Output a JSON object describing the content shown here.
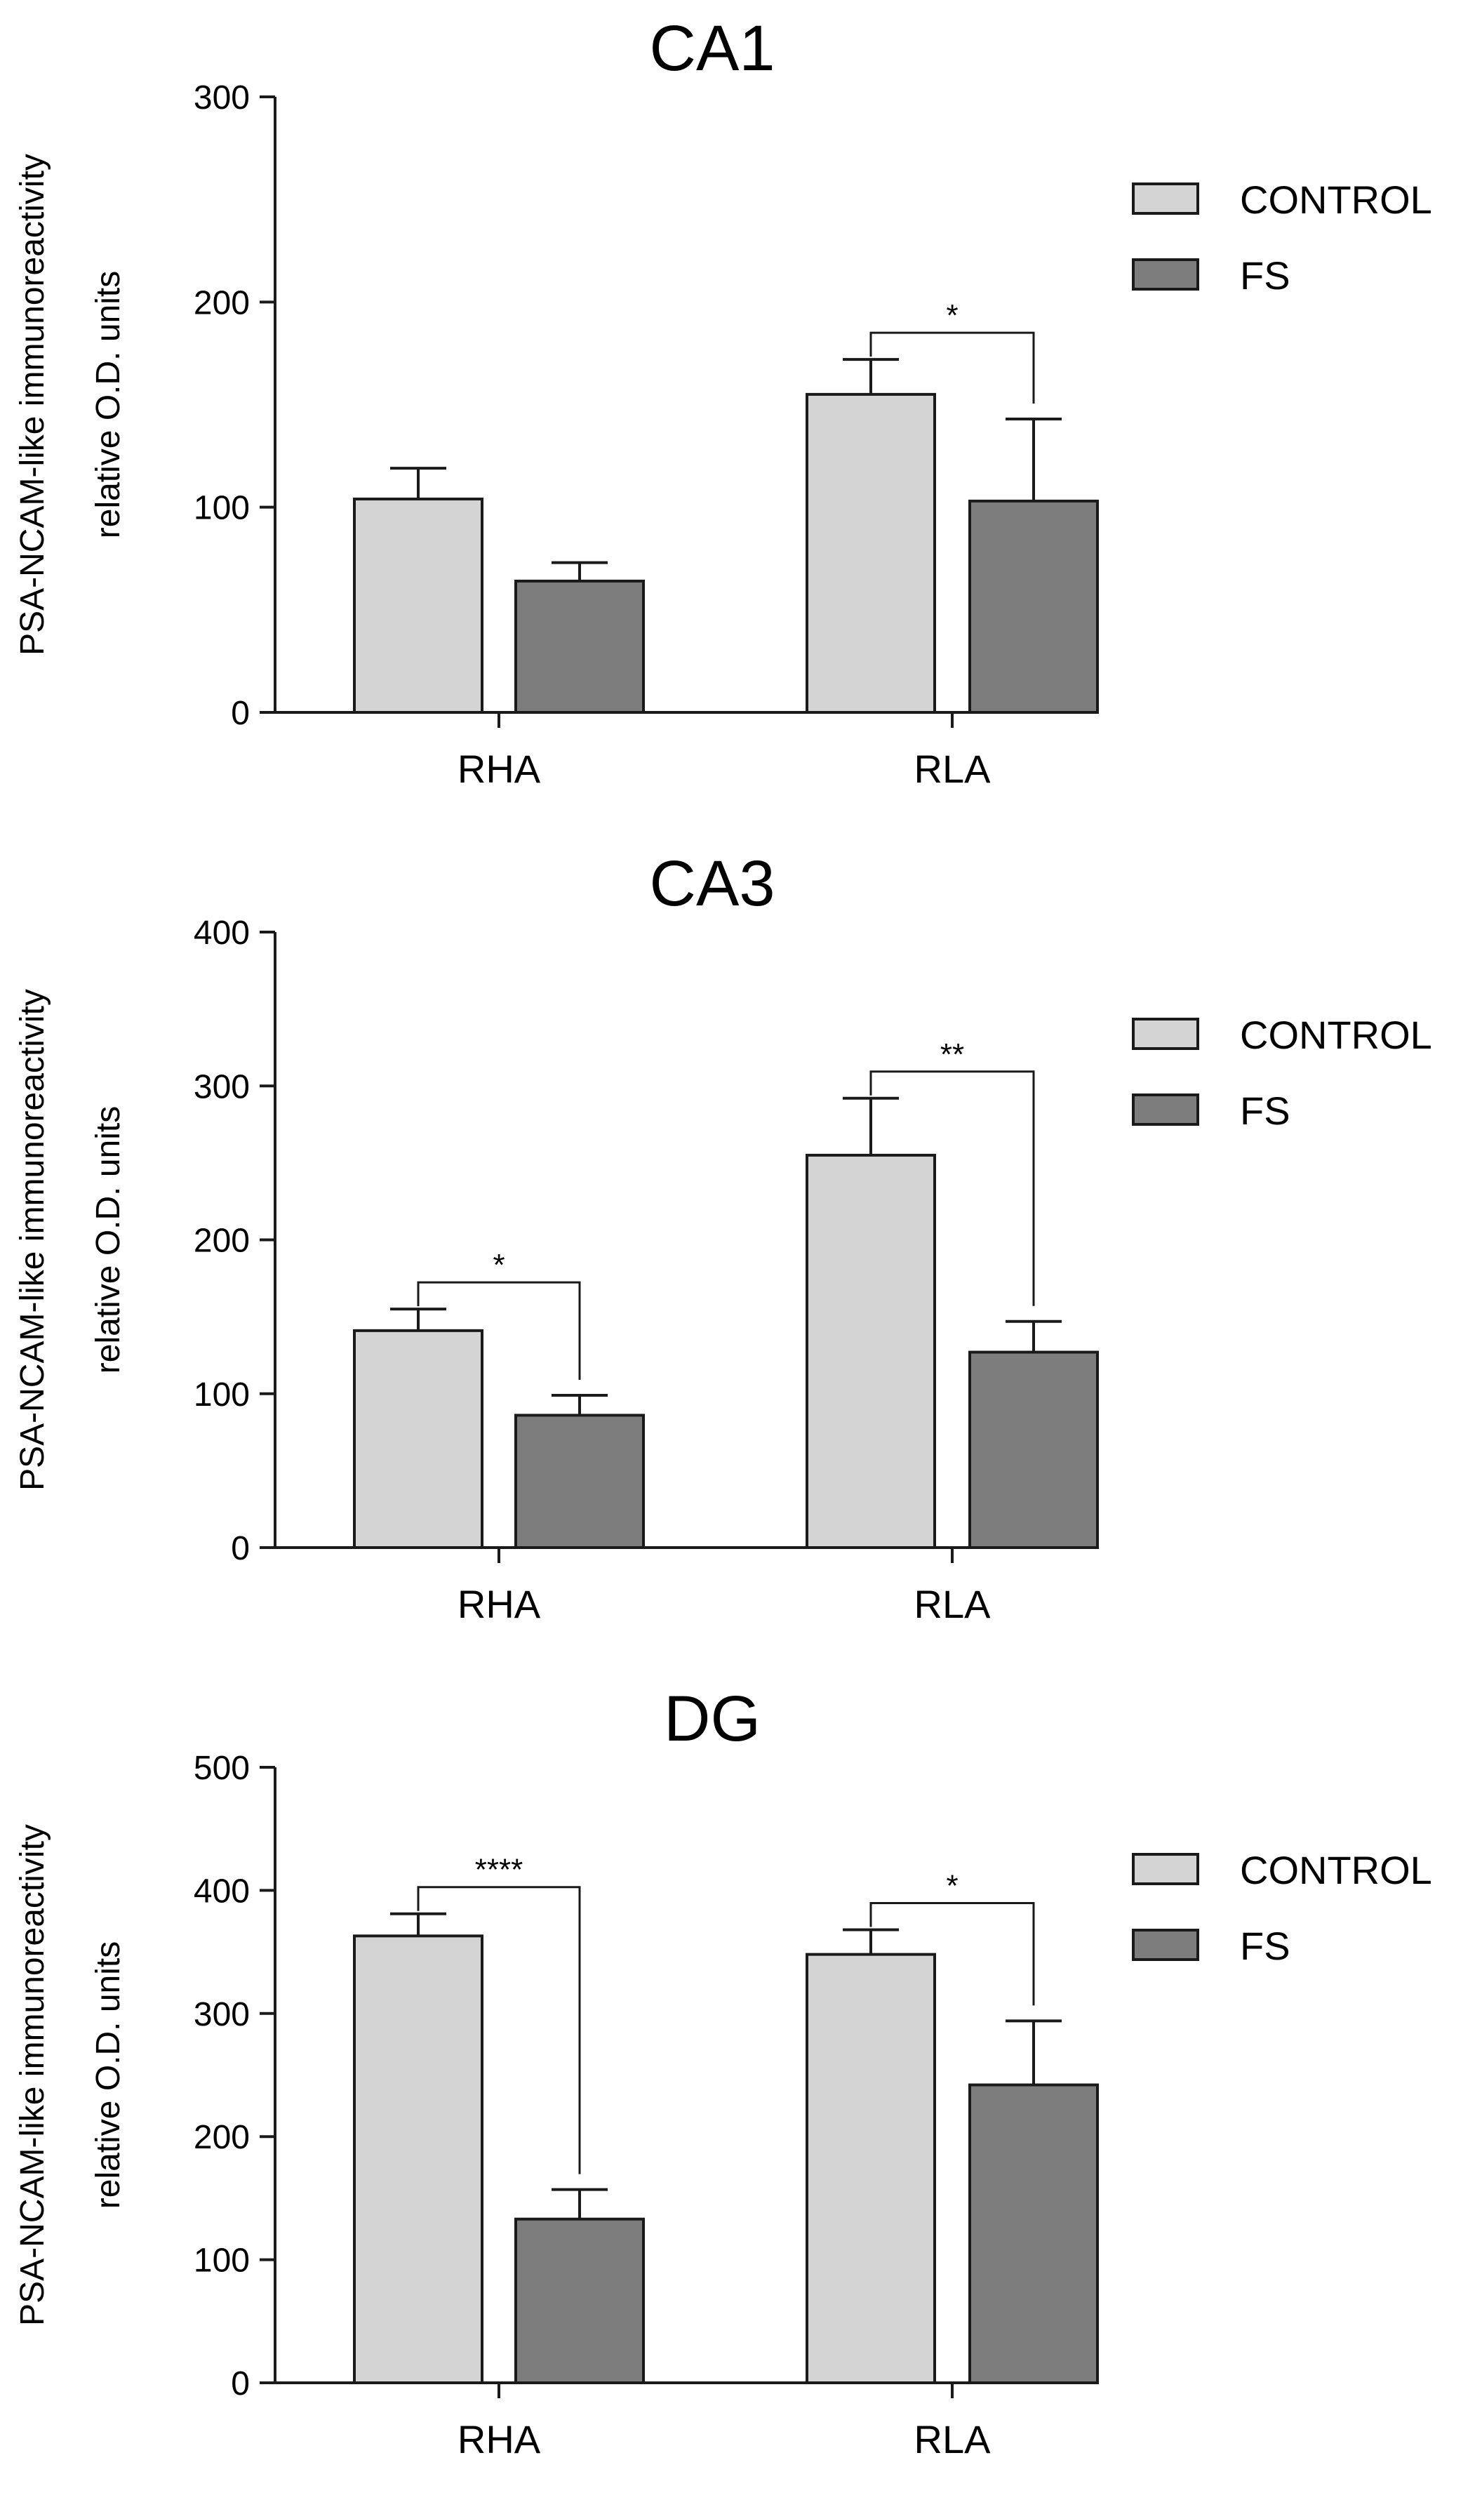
{
  "figure_label": "PSA-NCAM-like immunoreactivity relative O.D. units",
  "colors": {
    "control": "#d4d4d4",
    "fs": "#7d7d7d",
    "stroke": "#1a1a1a"
  },
  "chart_data": [
    {
      "type": "bar",
      "title": "CA1",
      "ylabel_line1": "PSA-NCAM-like immunoreactivity",
      "ylabel_line2": "relative O.D. units",
      "xlabel": "",
      "categories": [
        "RHA",
        "RLA"
      ],
      "ylim": [
        0,
        300
      ],
      "yticks": [
        0,
        100,
        200,
        300
      ],
      "legend": [
        "CONTROL",
        "FS"
      ],
      "legend_position": "top-right",
      "series": [
        {
          "name": "CONTROL",
          "values": [
            104,
            155
          ],
          "errors": [
            15,
            17
          ]
        },
        {
          "name": "FS",
          "values": [
            64,
            103
          ],
          "errors": [
            9,
            40
          ]
        }
      ],
      "significance": [
        {
          "category": "RLA",
          "label": "*"
        }
      ]
    },
    {
      "type": "bar",
      "title": "CA3",
      "ylabel_line1": "PSA-NCAM-like immunoreactivity",
      "ylabel_line2": "relative O.D. units",
      "xlabel": "",
      "categories": [
        "RHA",
        "RLA"
      ],
      "ylim": [
        0,
        400
      ],
      "yticks": [
        0,
        100,
        200,
        300,
        400
      ],
      "legend": [
        "CONTROL",
        "FS"
      ],
      "legend_position": "top-right",
      "series": [
        {
          "name": "CONTROL",
          "values": [
            141,
            255
          ],
          "errors": [
            14,
            37
          ]
        },
        {
          "name": "FS",
          "values": [
            86,
            127
          ],
          "errors": [
            13,
            20
          ]
        }
      ],
      "significance": [
        {
          "category": "RHA",
          "label": "*"
        },
        {
          "category": "RLA",
          "label": "**"
        }
      ]
    },
    {
      "type": "bar",
      "title": "DG",
      "ylabel_line1": "PSA-NCAM-like immunoreactivity",
      "ylabel_line2": "relative O.D. units",
      "xlabel": "",
      "categories": [
        "RHA",
        "RLA"
      ],
      "ylim": [
        0,
        500
      ],
      "yticks": [
        0,
        100,
        200,
        300,
        400,
        500
      ],
      "legend": [
        "CONTROL",
        "FS"
      ],
      "legend_position": "top-right",
      "series": [
        {
          "name": "CONTROL",
          "values": [
            363,
            348
          ],
          "errors": [
            18,
            20
          ]
        },
        {
          "name": "FS",
          "values": [
            133,
            242
          ],
          "errors": [
            24,
            52
          ]
        }
      ],
      "significance": [
        {
          "category": "RHA",
          "label": "****"
        },
        {
          "category": "RLA",
          "label": "*"
        }
      ]
    }
  ]
}
